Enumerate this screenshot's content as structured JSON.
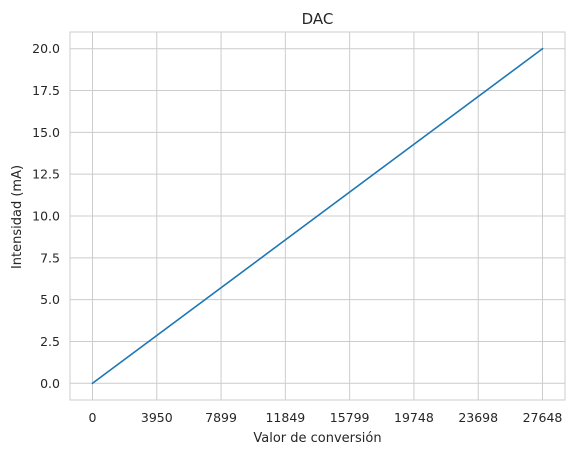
{
  "chart_data": {
    "type": "line",
    "title": "DAC",
    "xlabel": "Valor de conversión",
    "ylabel": "Intensidad (mA)",
    "xlim": [
      -1382.4,
      29030.4
    ],
    "ylim": [
      -1.0,
      21.0
    ],
    "xticks": [
      0,
      3950,
      7899,
      11849,
      15799,
      19748,
      23698,
      27648
    ],
    "xtick_labels": [
      "0",
      "3950",
      "7899",
      "11849",
      "15799",
      "19748",
      "23698",
      "27648"
    ],
    "yticks": [
      0.0,
      2.5,
      5.0,
      7.5,
      10.0,
      12.5,
      15.0,
      17.5,
      20.0
    ],
    "ytick_labels": [
      "0.0",
      "2.5",
      "5.0",
      "7.5",
      "10.0",
      "12.5",
      "15.0",
      "17.5",
      "20.0"
    ],
    "grid": true,
    "series": [
      {
        "x": [
          0,
          27648
        ],
        "y": [
          0.0,
          20.0
        ],
        "color": "#1f77b4"
      }
    ]
  },
  "colors": {
    "grid": "#cccccc",
    "axes_edge": "#cccccc",
    "text": "#262626",
    "line": "#1f77b4"
  }
}
